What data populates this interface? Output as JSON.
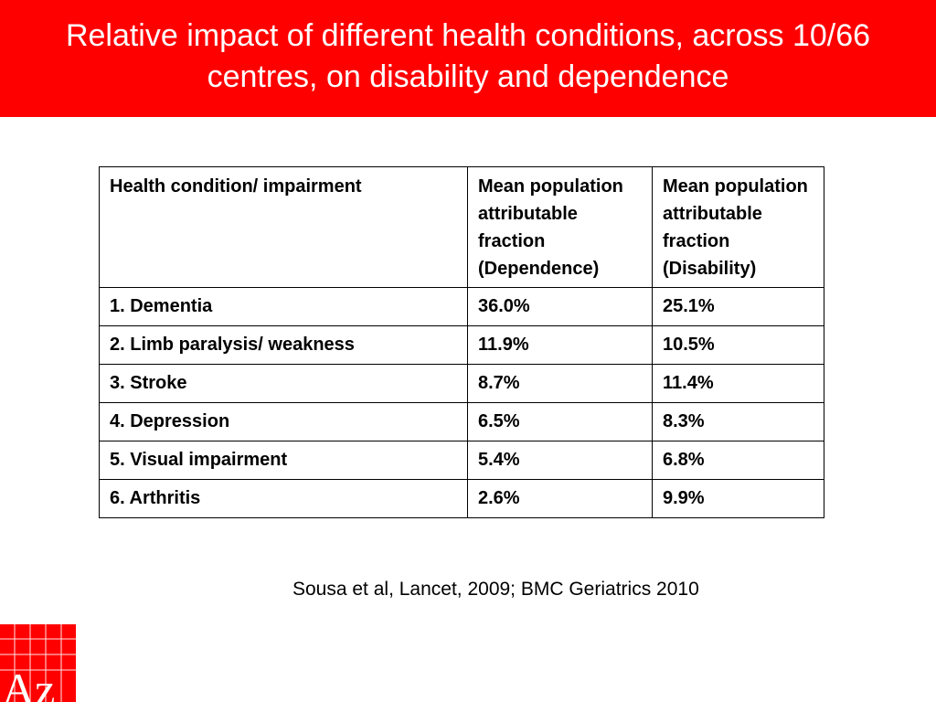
{
  "slide": {
    "title": "Relative impact of different health conditions, across 10/66 centres, on disability and dependence",
    "citation": "Sousa et al, Lancet, 2009; BMC Geriatrics 2010",
    "logo_text": "Az",
    "colors": {
      "title_bar": "#ff0000",
      "title_text": "#ffffff",
      "logo_background": "#ff0000"
    }
  },
  "table": {
    "headers": [
      "Health condition/ impairment",
      "Mean population attributable fraction (Dependence)",
      "Mean population attributable fraction (Disability)"
    ],
    "rows": [
      [
        "1. Dementia",
        "36.0%",
        "25.1%"
      ],
      [
        "2. Limb paralysis/ weakness",
        "11.9%",
        "10.5%"
      ],
      [
        "3. Stroke",
        "8.7%",
        "11.4%"
      ],
      [
        "4. Depression",
        "6.5%",
        "8.3%"
      ],
      [
        "5. Visual impairment",
        "5.4%",
        "6.8%"
      ],
      [
        "6. Arthritis",
        "2.6%",
        "9.9%"
      ]
    ]
  }
}
